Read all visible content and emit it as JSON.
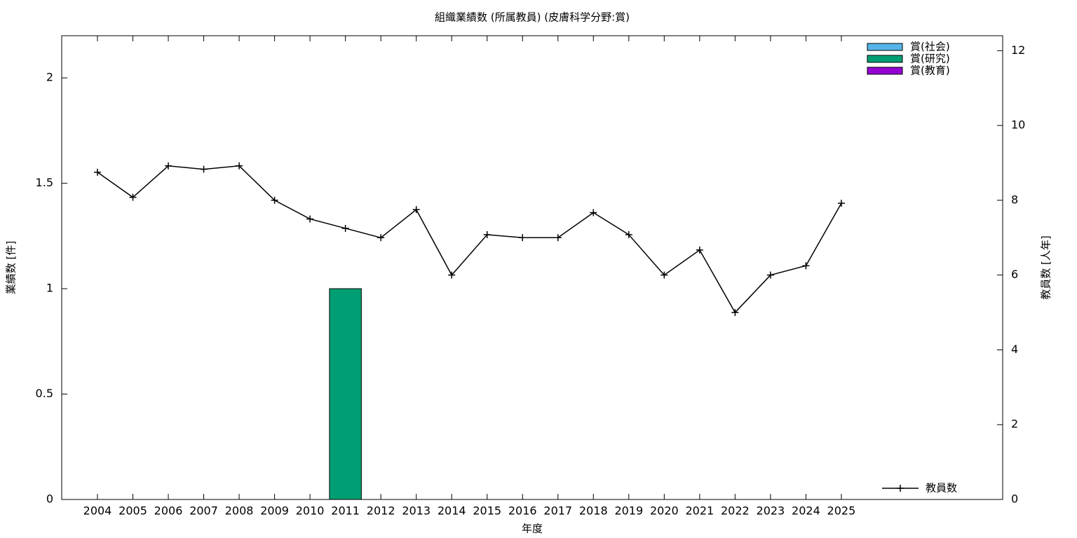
{
  "chart_data": {
    "type": "bar",
    "title": "組織業績数 (所属教員) (皮膚科学分野:賞)",
    "xlabel": "年度",
    "ylabel": "業績数 [件]",
    "y2label": "教員数 [人年]",
    "categories": [
      "2004",
      "2005",
      "2006",
      "2007",
      "2008",
      "2009",
      "2010",
      "2011",
      "2012",
      "2013",
      "2014",
      "2015",
      "2016",
      "2017",
      "2018",
      "2019",
      "2020",
      "2021",
      "2022",
      "2023",
      "2024",
      "2025"
    ],
    "ylim": [
      0,
      2.2
    ],
    "yticks": [
      0,
      0.5,
      1,
      1.5,
      2
    ],
    "y2lim": [
      0,
      12.4
    ],
    "y2ticks": [
      0,
      2,
      4,
      6,
      8,
      10,
      12
    ],
    "series": [
      {
        "name": "賞(社会)",
        "color": "#56b4e9",
        "values": [
          0,
          0,
          0,
          0,
          0,
          0,
          0,
          0,
          0,
          0,
          0,
          0,
          0,
          0,
          0,
          0,
          0,
          0,
          0,
          0,
          0,
          0
        ]
      },
      {
        "name": "賞(研究)",
        "color": "#009e73",
        "values": [
          0,
          0,
          0,
          0,
          0,
          0,
          0,
          1,
          0,
          0,
          0,
          0,
          0,
          0,
          0,
          0,
          0,
          0,
          0,
          0,
          0,
          0
        ]
      },
      {
        "name": "賞(教育)",
        "color": "#9400d3",
        "values": [
          0,
          0,
          0,
          0,
          0,
          0,
          0,
          0,
          0,
          0,
          0,
          0,
          0,
          0,
          0,
          0,
          0,
          0,
          0,
          0,
          0,
          0
        ]
      },
      {
        "name": "教員数",
        "type": "line",
        "axis": "y2",
        "color": "#000000",
        "values": [
          8.75,
          8.08,
          8.92,
          8.83,
          8.92,
          8,
          7.5,
          7.25,
          7,
          7.75,
          6,
          7.08,
          7,
          7,
          7.67,
          7.08,
          6,
          6.67,
          5,
          6,
          6.25,
          7.92
        ]
      }
    ]
  }
}
